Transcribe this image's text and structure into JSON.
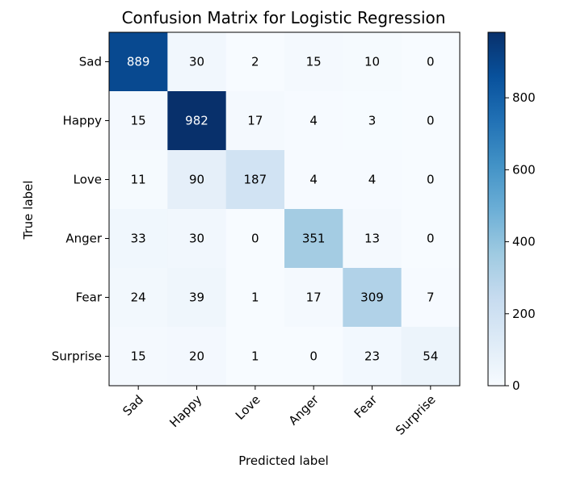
{
  "chart_data": {
    "type": "heatmap",
    "title": "Confusion Matrix for Logistic Regression",
    "xlabel": "Predicted label",
    "ylabel": "True label",
    "x_categories": [
      "Sad",
      "Happy",
      "Love",
      "Anger",
      "Fear",
      "Surprise"
    ],
    "y_categories": [
      "Sad",
      "Happy",
      "Love",
      "Anger",
      "Fear",
      "Surprise"
    ],
    "values": [
      [
        889,
        30,
        2,
        15,
        10,
        0
      ],
      [
        15,
        982,
        17,
        4,
        3,
        0
      ],
      [
        11,
        90,
        187,
        4,
        4,
        0
      ],
      [
        33,
        30,
        0,
        351,
        13,
        0
      ],
      [
        24,
        39,
        1,
        17,
        309,
        7
      ],
      [
        15,
        20,
        1,
        0,
        23,
        54
      ]
    ],
    "colormap": "Blues",
    "color_range": [
      0,
      982
    ],
    "colorbar_ticks": [
      0,
      200,
      400,
      600,
      800
    ],
    "grid": false
  }
}
